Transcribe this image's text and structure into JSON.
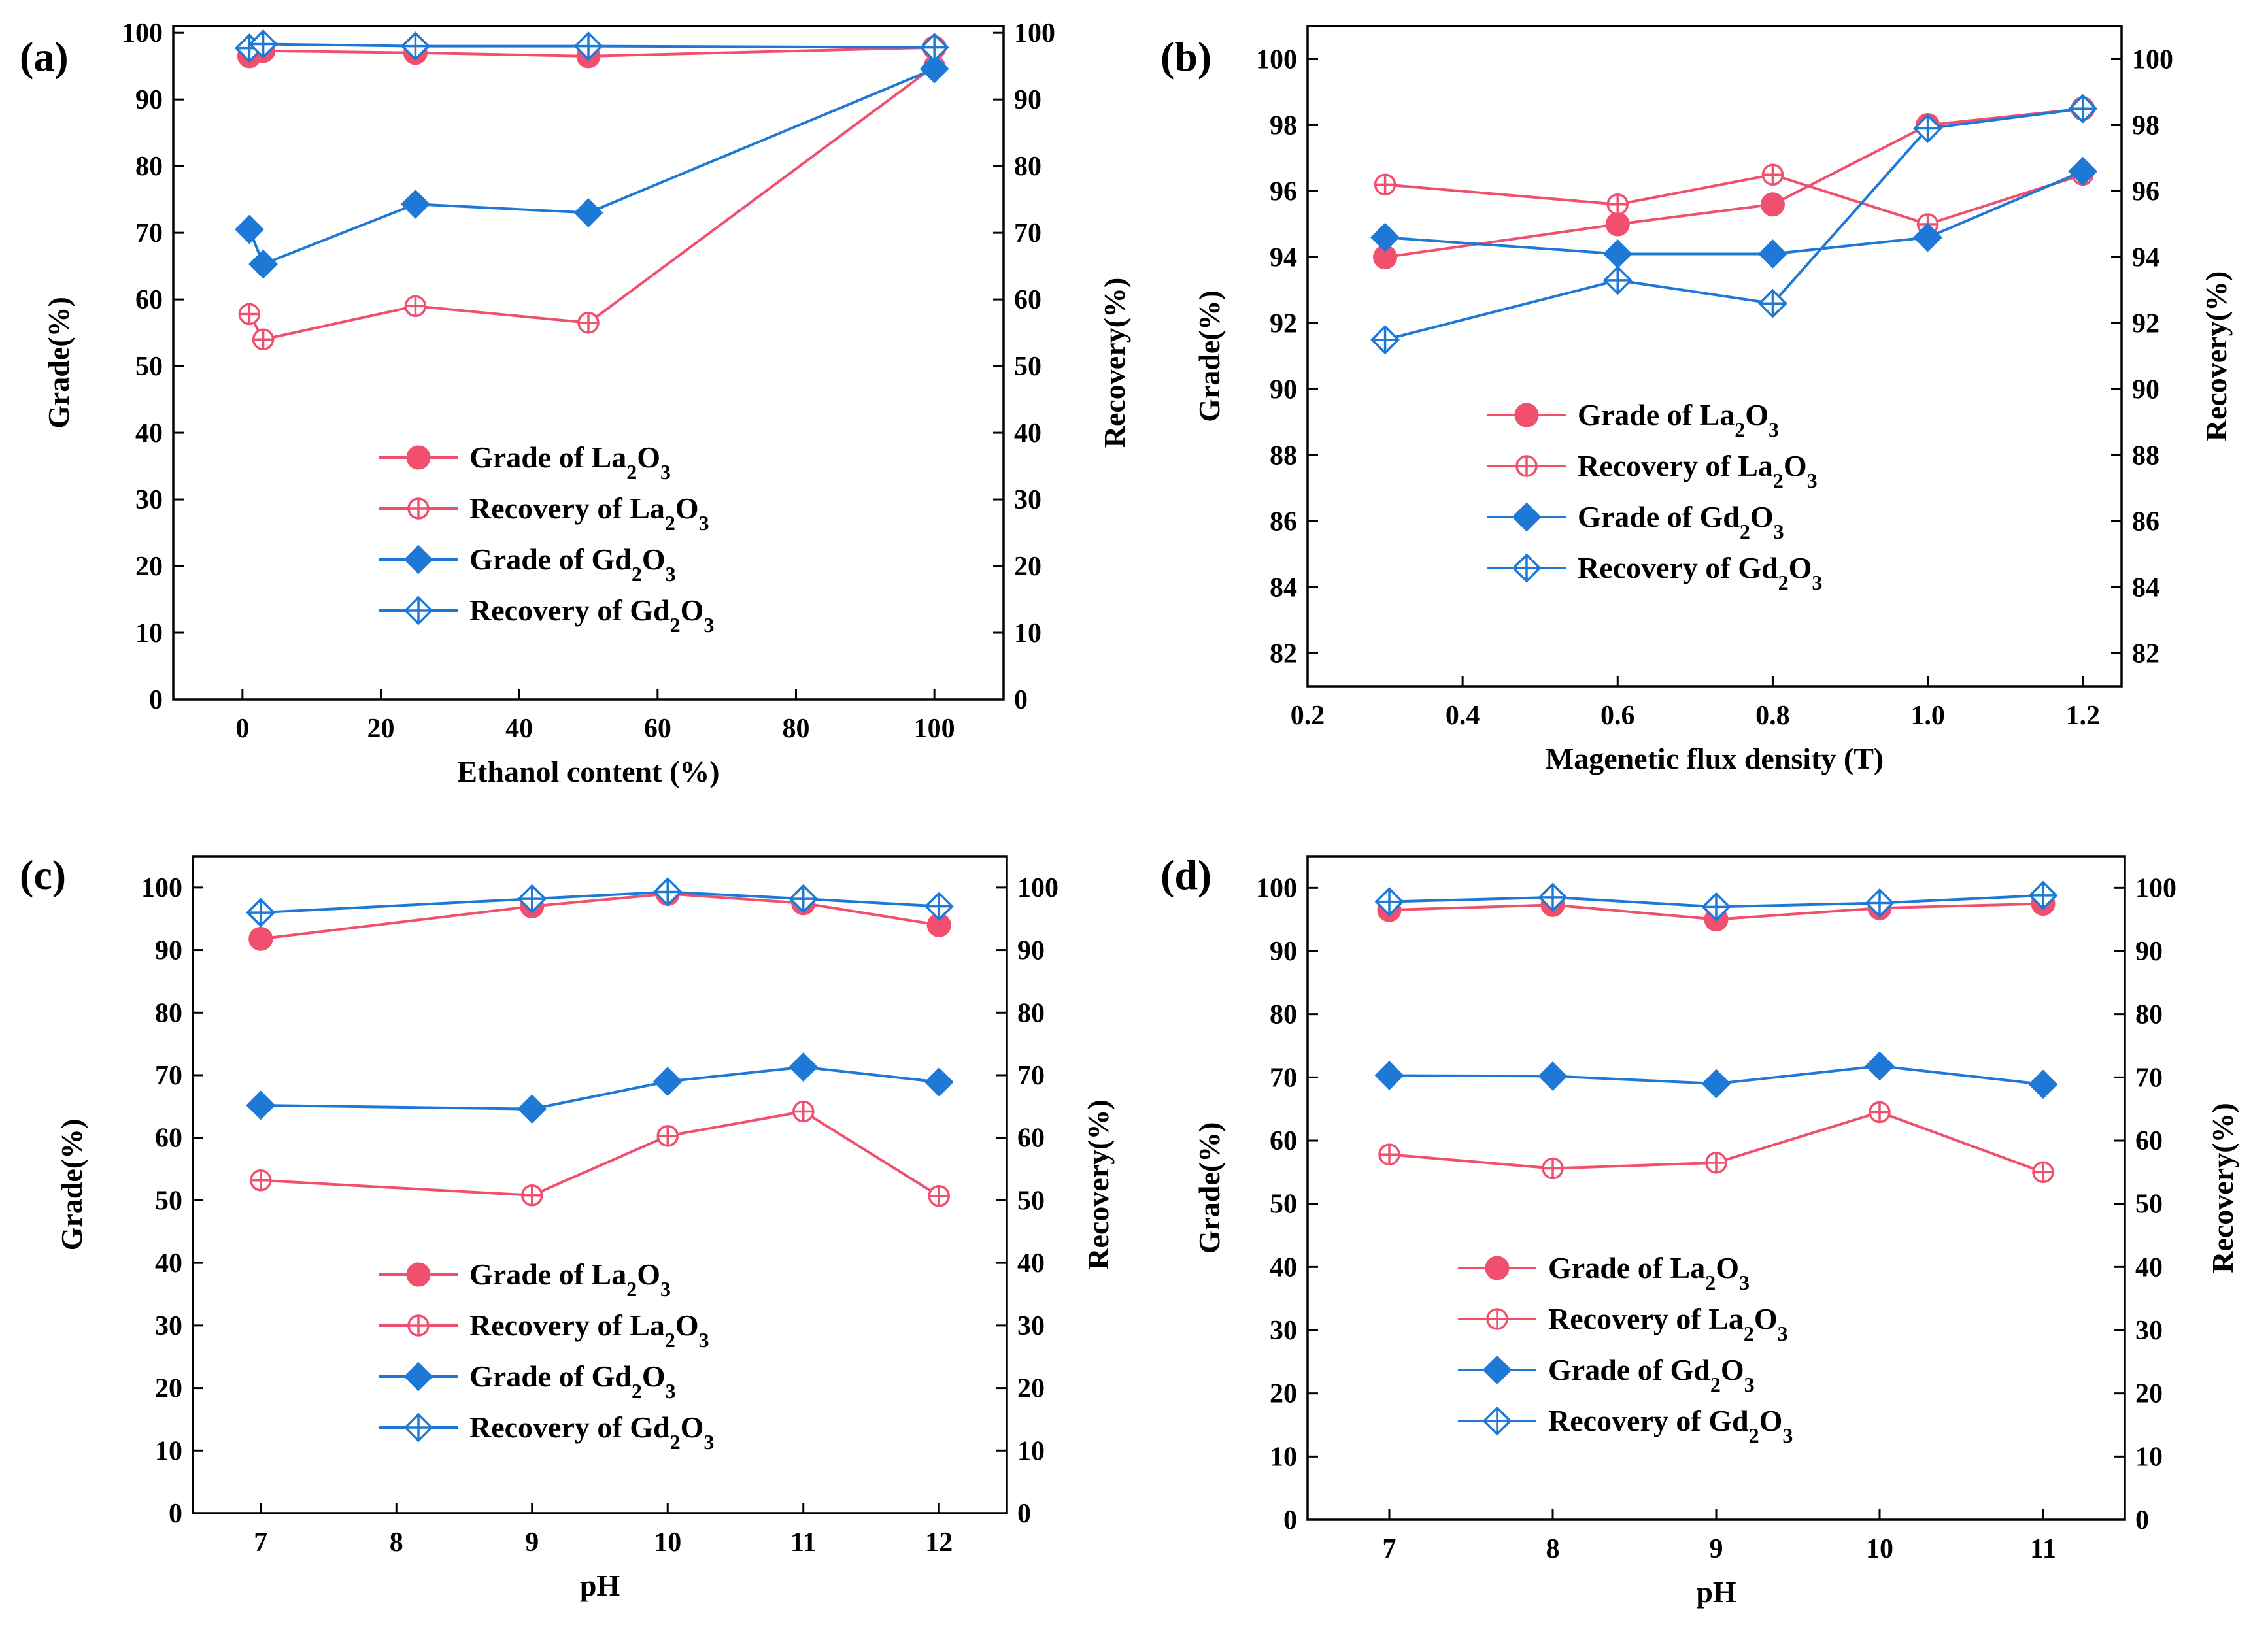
{
  "colors": {
    "la": "#f0506e",
    "gd": "#1e78d6",
    "frame": "#000000"
  },
  "legend_labels": [
    {
      "prefix": "Grade of La",
      "sub1": "2",
      "mid": "O",
      "sub2": "3"
    },
    {
      "prefix": "Recovery of La",
      "sub1": "2",
      "mid": "O",
      "sub2": "3"
    },
    {
      "prefix": "Grade of Gd",
      "sub1": "2",
      "mid": "O",
      "sub2": "3"
    },
    {
      "prefix": "Recovery of Gd",
      "sub1": "2",
      "mid": "O",
      "sub2": "3"
    }
  ],
  "chart_data": [
    {
      "panel": "(a)",
      "type": "line",
      "xlabel": "Ethanol content (%)",
      "ylabel": "Grade(%)",
      "y2label": "Recovery(%)",
      "xlim": [
        -10,
        110
      ],
      "ylim": [
        0,
        101
      ],
      "y2lim": [
        0,
        101
      ],
      "xticks": [
        0,
        20,
        40,
        60,
        80,
        100
      ],
      "yticks": [
        0,
        10,
        20,
        30,
        40,
        50,
        60,
        70,
        80,
        90,
        100
      ],
      "y2ticks": [
        0,
        10,
        20,
        30,
        40,
        50,
        60,
        70,
        80,
        90,
        100
      ],
      "tick_decimals": 0,
      "legend_position": "lower-center",
      "series": [
        {
          "name": "Grade of La2O3",
          "color": "la",
          "marker": "circle",
          "x": [
            1,
            3,
            25,
            50,
            100
          ],
          "y": [
            96.5,
            97.3,
            97.0,
            96.5,
            97.8
          ]
        },
        {
          "name": "Recovery of La2O3",
          "color": "la",
          "marker": "circle-plus",
          "x": [
            1,
            3,
            25,
            50,
            100
          ],
          "y": [
            57.8,
            54.0,
            59.0,
            56.5,
            95.0
          ]
        },
        {
          "name": "Grade of Gd2O3",
          "color": "gd",
          "marker": "diamond",
          "x": [
            1,
            3,
            25,
            50,
            100
          ],
          "y": [
            70.5,
            65.3,
            74.3,
            73.0,
            94.6
          ]
        },
        {
          "name": "Recovery of Gd2O3",
          "color": "gd",
          "marker": "diamond-plus",
          "x": [
            1,
            3,
            25,
            50,
            100
          ],
          "y": [
            97.7,
            98.3,
            98.0,
            98.0,
            97.8
          ]
        }
      ]
    },
    {
      "panel": "(b)",
      "type": "line",
      "xlabel": "Magenetic flux density (T)",
      "ylabel": "Grade(%)",
      "y2label": "Recovery(%)",
      "xlim": [
        0.2,
        1.25
      ],
      "ylim": [
        81,
        101
      ],
      "y2lim": [
        81,
        101
      ],
      "xticks": [
        0.2,
        0.4,
        0.6,
        0.8,
        1.0,
        1.2
      ],
      "yticks": [
        82,
        84,
        86,
        88,
        90,
        92,
        94,
        96,
        98,
        100
      ],
      "y2ticks": [
        82,
        84,
        86,
        88,
        90,
        92,
        94,
        96,
        98,
        100
      ],
      "tick_decimals": 1,
      "legend_position": "middle-left",
      "series": [
        {
          "name": "Grade of La2O3",
          "color": "la",
          "marker": "circle",
          "x": [
            0.3,
            0.6,
            0.8,
            1.0,
            1.2
          ],
          "y": [
            94.0,
            95.0,
            95.6,
            98.0,
            98.5
          ]
        },
        {
          "name": "Recovery of La2O3",
          "color": "la",
          "marker": "circle-plus",
          "x": [
            0.3,
            0.6,
            0.8,
            1.0,
            1.2
          ],
          "y": [
            96.2,
            95.6,
            96.5,
            95.0,
            96.5
          ]
        },
        {
          "name": "Grade of Gd2O3",
          "color": "gd",
          "marker": "diamond",
          "x": [
            0.3,
            0.6,
            0.8,
            1.0,
            1.2
          ],
          "y": [
            94.6,
            94.1,
            94.1,
            94.6,
            96.6
          ]
        },
        {
          "name": "Recovery of Gd2O3",
          "color": "gd",
          "marker": "diamond-plus",
          "x": [
            0.3,
            0.6,
            0.8,
            1.0,
            1.2
          ],
          "y": [
            91.5,
            93.3,
            92.6,
            97.9,
            98.5
          ]
        }
      ]
    },
    {
      "panel": "(c)",
      "type": "line",
      "xlabel": "pH",
      "ylabel": "Grade(%)",
      "y2label": "Recovery(%)",
      "xlim": [
        6.5,
        12.5
      ],
      "ylim": [
        0,
        105
      ],
      "y2lim": [
        0,
        105
      ],
      "xticks": [
        7,
        8,
        9,
        10,
        11,
        12
      ],
      "yticks": [
        0,
        10,
        20,
        30,
        40,
        50,
        60,
        70,
        80,
        90,
        100
      ],
      "y2ticks": [
        0,
        10,
        20,
        30,
        40,
        50,
        60,
        70,
        80,
        90,
        100
      ],
      "tick_decimals": 0,
      "legend_position": "lower-center",
      "series": [
        {
          "name": "Grade of La2O3",
          "color": "la",
          "marker": "circle",
          "x": [
            7,
            9,
            10,
            11,
            12
          ],
          "y": [
            91.8,
            97.0,
            99.0,
            97.5,
            94.0
          ]
        },
        {
          "name": "Recovery of La2O3",
          "color": "la",
          "marker": "circle-plus",
          "x": [
            7,
            9,
            10,
            11,
            12
          ],
          "y": [
            53.2,
            50.8,
            60.3,
            64.2,
            50.7
          ]
        },
        {
          "name": "Grade of Gd2O3",
          "color": "gd",
          "marker": "diamond",
          "x": [
            7,
            9,
            10,
            11,
            12
          ],
          "y": [
            65.2,
            64.6,
            69.0,
            71.3,
            68.9
          ]
        },
        {
          "name": "Recovery of Gd2O3",
          "color": "gd",
          "marker": "diamond-plus",
          "x": [
            7,
            9,
            10,
            11,
            12
          ],
          "y": [
            96.0,
            98.2,
            99.3,
            98.2,
            97.0
          ]
        }
      ]
    },
    {
      "panel": "(d)",
      "type": "line",
      "xlabel": "pH",
      "ylabel": "Grade(%)",
      "y2label": "Recovery(%)",
      "xlim": [
        6.5,
        11.5
      ],
      "ylim": [
        0,
        105
      ],
      "y2lim": [
        0,
        105
      ],
      "xticks": [
        7,
        8,
        9,
        10,
        11
      ],
      "yticks": [
        0,
        10,
        20,
        30,
        40,
        50,
        60,
        70,
        80,
        90,
        100
      ],
      "y2ticks": [
        0,
        10,
        20,
        30,
        40,
        50,
        60,
        70,
        80,
        90,
        100
      ],
      "tick_decimals": 0,
      "legend_position": "lower-center",
      "series": [
        {
          "name": "Grade of La2O3",
          "color": "la",
          "marker": "circle",
          "x": [
            7,
            8,
            9,
            10,
            11
          ],
          "y": [
            96.5,
            97.3,
            95.0,
            96.8,
            97.5
          ]
        },
        {
          "name": "Recovery of La2O3",
          "color": "la",
          "marker": "circle-plus",
          "x": [
            7,
            8,
            9,
            10,
            11
          ],
          "y": [
            57.8,
            55.6,
            56.5,
            64.5,
            55.0
          ]
        },
        {
          "name": "Grade of Gd2O3",
          "color": "gd",
          "marker": "diamond",
          "x": [
            7,
            8,
            9,
            10,
            11
          ],
          "y": [
            70.3,
            70.2,
            69.0,
            71.8,
            68.9
          ]
        },
        {
          "name": "Recovery of Gd2O3",
          "color": "gd",
          "marker": "diamond-plus",
          "x": [
            7,
            8,
            9,
            10,
            11
          ],
          "y": [
            97.8,
            98.5,
            97.0,
            97.6,
            98.8
          ]
        }
      ]
    }
  ]
}
